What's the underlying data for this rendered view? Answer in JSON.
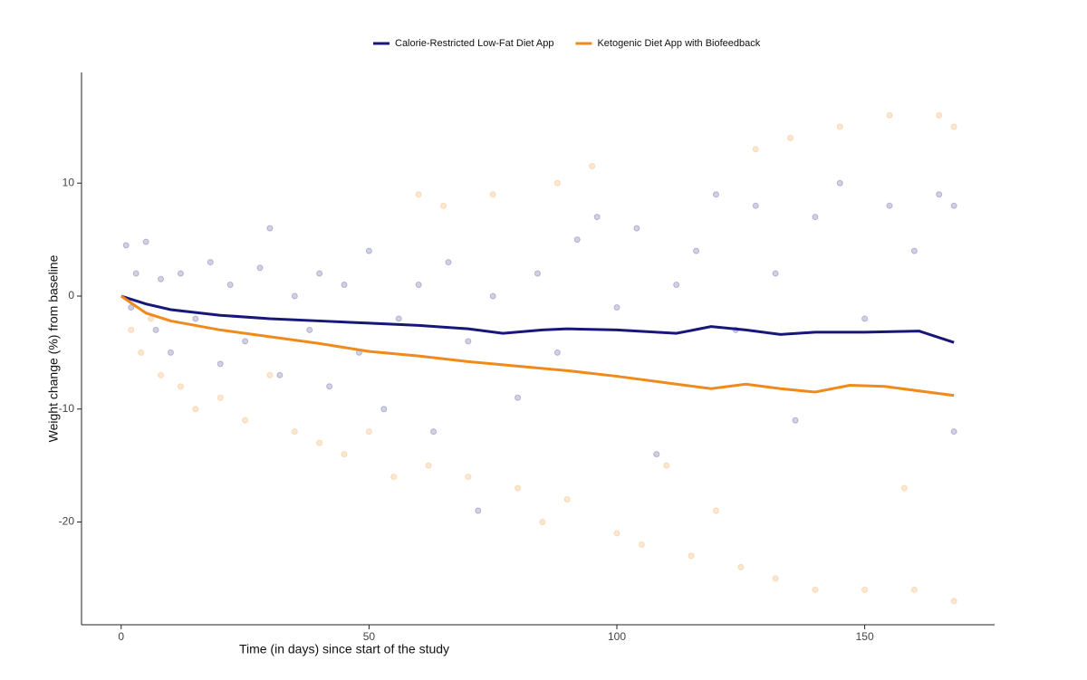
{
  "chart_data": {
    "type": "line",
    "x_label": "Time (in days) since start of the study",
    "y_label": "Weight change (%) from baseline",
    "xlim": [
      -8,
      176.2
    ],
    "ylim": [
      -29.1,
      19.8
    ],
    "xticks": [
      0,
      50,
      100,
      150
    ],
    "yticks": [
      -20,
      -10,
      0,
      10
    ],
    "legend": "top",
    "series": [
      {
        "name": "Calorie-Restricted Low-Fat Diet App",
        "color": "#17177a",
        "x": [
          0,
          5,
          10,
          20,
          30,
          40,
          50,
          60,
          70,
          77,
          85,
          90,
          100,
          112,
          119,
          126,
          133,
          140,
          150,
          161,
          168
        ],
        "values": [
          0,
          -0.7,
          -1.2,
          -1.7,
          -2.0,
          -2.2,
          -2.4,
          -2.6,
          -2.9,
          -3.3,
          -3.0,
          -2.9,
          -3.0,
          -3.3,
          -2.7,
          -3.0,
          -3.4,
          -3.2,
          -3.2,
          -3.1,
          -4.1
        ]
      },
      {
        "name": "Ketogenic Diet App with Biofeedback",
        "color": "#f08a1c",
        "x": [
          0,
          5,
          10,
          20,
          30,
          40,
          50,
          60,
          70,
          80,
          90,
          100,
          112,
          119,
          126,
          133,
          140,
          147,
          154,
          168
        ],
        "values": [
          0,
          -1.5,
          -2.2,
          -3.0,
          -3.6,
          -4.2,
          -4.9,
          -5.3,
          -5.8,
          -6.2,
          -6.6,
          -7.1,
          -7.8,
          -8.2,
          -7.8,
          -8.2,
          -8.5,
          -7.9,
          -8.0,
          -8.8
        ]
      }
    ],
    "scatter_series": [
      {
        "color": "#17177a",
        "x": [
          1,
          2,
          3,
          5,
          7,
          8,
          10,
          12,
          15,
          18,
          20,
          22,
          25,
          28,
          30,
          32,
          35,
          38,
          40,
          42,
          45,
          48,
          50,
          53,
          56,
          60,
          63,
          66,
          70,
          72,
          75,
          80,
          84,
          88,
          92,
          96,
          100,
          104,
          108,
          112,
          116,
          120,
          124,
          128,
          132,
          136,
          140,
          145,
          150,
          155,
          160,
          165,
          168,
          168
        ],
        "values": [
          4.5,
          -1,
          2,
          4.8,
          -3,
          1.5,
          -5,
          2,
          -2,
          3,
          -6,
          1,
          -4,
          2.5,
          6,
          -7,
          0,
          -3,
          2,
          -8,
          1,
          -5,
          4,
          -10,
          -2,
          1,
          -12,
          3,
          -4,
          -19,
          0,
          -9,
          2,
          -5,
          5,
          7,
          -1,
          6,
          -14,
          1,
          4,
          9,
          -3,
          8,
          2,
          -11,
          7,
          10,
          -2,
          8,
          4,
          9,
          -12,
          8
        ]
      },
      {
        "color": "#f08a1c",
        "x": [
          2,
          4,
          6,
          8,
          12,
          15,
          20,
          25,
          30,
          35,
          40,
          45,
          50,
          55,
          60,
          62,
          65,
          70,
          75,
          80,
          85,
          88,
          90,
          95,
          100,
          105,
          110,
          115,
          120,
          125,
          128,
          132,
          135,
          140,
          145,
          150,
          155,
          158,
          160,
          165,
          168,
          168
        ],
        "values": [
          -3,
          -5,
          -2,
          -7,
          -8,
          -10,
          -9,
          -11,
          -7,
          -12,
          -13,
          -14,
          -12,
          -16,
          9,
          -15,
          8,
          -16,
          9,
          -17,
          -20,
          10,
          -18,
          11.5,
          -21,
          -22,
          -15,
          -23,
          -19,
          -24,
          13,
          -25,
          14,
          -26,
          15,
          -26,
          16,
          -17,
          -26,
          16,
          -27,
          15
        ]
      }
    ]
  }
}
